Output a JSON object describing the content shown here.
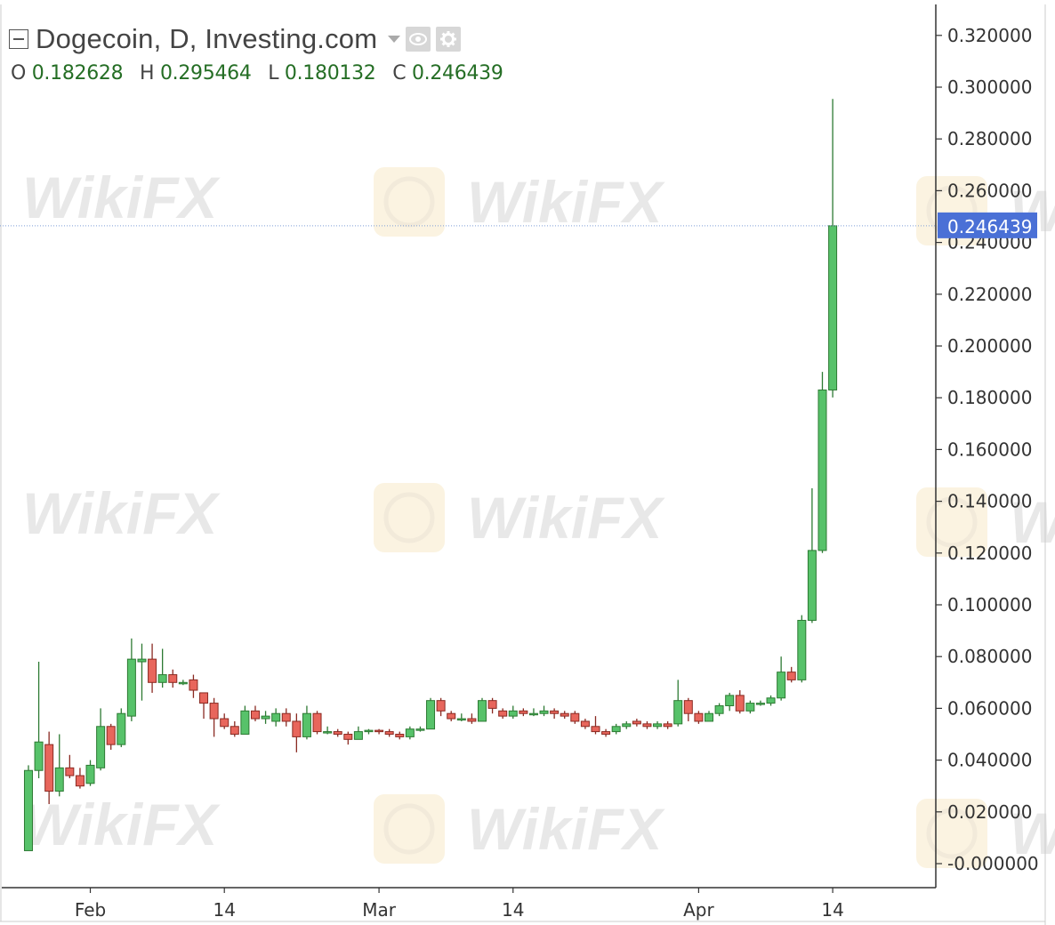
{
  "header": {
    "title": "Dogecoin, D, Investing.com",
    "ohlc": [
      {
        "key": "O",
        "value": "0.182628"
      },
      {
        "key": "H",
        "value": "0.295464"
      },
      {
        "key": "L",
        "value": "0.180132"
      },
      {
        "key": "C",
        "value": "0.246439"
      }
    ],
    "icons": [
      "eye-icon",
      "gear-icon"
    ]
  },
  "watermark": "WikiFX",
  "colors": {
    "up": "#4caf50",
    "up_fill": "#57c26a",
    "down": "#e05a4f",
    "down_fill": "#e8665c",
    "last_price_bg": "#4a70d6",
    "last_price_line": "#7f9fd8"
  },
  "chart_data": {
    "type": "candlestick",
    "title": "Dogecoin, D, Investing.com",
    "y_tick_labels": [
      "-0.000000",
      "0.020000",
      "0.040000",
      "0.060000",
      "0.080000",
      "0.100000",
      "0.120000",
      "0.140000",
      "0.160000",
      "0.180000",
      "0.200000",
      "0.220000",
      "0.240000",
      "0.260000",
      "0.280000",
      "0.300000",
      "0.320000"
    ],
    "y_ticks": [
      0,
      0.02,
      0.04,
      0.06,
      0.08,
      0.1,
      0.12,
      0.14,
      0.16,
      0.18,
      0.2,
      0.22,
      0.24,
      0.26,
      0.28,
      0.3,
      0.32
    ],
    "ylim": [
      -0.004,
      0.333
    ],
    "x_tick_labels": [
      {
        "label": "Feb",
        "day": 6
      },
      {
        "label": "14",
        "day": 19
      },
      {
        "label": "Mar",
        "day": 34
      },
      {
        "label": "14",
        "day": 47
      },
      {
        "label": "Apr",
        "day": 65
      },
      {
        "label": "14",
        "day": 78
      }
    ],
    "xlim": [
      -2.5,
      88
    ],
    "last_price_label": "0.246439",
    "last_price": 0.246439,
    "grid": false,
    "candles": [
      {
        "o": 0.005,
        "h": 0.038,
        "l": 0.005,
        "c": 0.036
      },
      {
        "o": 0.036,
        "h": 0.078,
        "l": 0.033,
        "c": 0.047
      },
      {
        "o": 0.046,
        "h": 0.051,
        "l": 0.023,
        "c": 0.028
      },
      {
        "o": 0.028,
        "h": 0.05,
        "l": 0.026,
        "c": 0.037
      },
      {
        "o": 0.037,
        "h": 0.042,
        "l": 0.033,
        "c": 0.034
      },
      {
        "o": 0.034,
        "h": 0.037,
        "l": 0.029,
        "c": 0.03
      },
      {
        "o": 0.031,
        "h": 0.04,
        "l": 0.03,
        "c": 0.038
      },
      {
        "o": 0.037,
        "h": 0.06,
        "l": 0.036,
        "c": 0.053
      },
      {
        "o": 0.053,
        "h": 0.054,
        "l": 0.044,
        "c": 0.046
      },
      {
        "o": 0.046,
        "h": 0.06,
        "l": 0.045,
        "c": 0.058
      },
      {
        "o": 0.057,
        "h": 0.087,
        "l": 0.055,
        "c": 0.079
      },
      {
        "o": 0.078,
        "h": 0.085,
        "l": 0.063,
        "c": 0.079
      },
      {
        "o": 0.079,
        "h": 0.085,
        "l": 0.066,
        "c": 0.07
      },
      {
        "o": 0.07,
        "h": 0.083,
        "l": 0.068,
        "c": 0.073
      },
      {
        "o": 0.073,
        "h": 0.075,
        "l": 0.068,
        "c": 0.07
      },
      {
        "o": 0.07,
        "h": 0.071,
        "l": 0.069,
        "c": 0.07
      },
      {
        "o": 0.071,
        "h": 0.073,
        "l": 0.064,
        "c": 0.067
      },
      {
        "o": 0.066,
        "h": 0.066,
        "l": 0.056,
        "c": 0.062
      },
      {
        "o": 0.062,
        "h": 0.064,
        "l": 0.049,
        "c": 0.056
      },
      {
        "o": 0.056,
        "h": 0.058,
        "l": 0.052,
        "c": 0.053
      },
      {
        "o": 0.053,
        "h": 0.055,
        "l": 0.049,
        "c": 0.05
      },
      {
        "o": 0.05,
        "h": 0.061,
        "l": 0.05,
        "c": 0.059
      },
      {
        "o": 0.059,
        "h": 0.061,
        "l": 0.055,
        "c": 0.056
      },
      {
        "o": 0.056,
        "h": 0.059,
        "l": 0.054,
        "c": 0.057
      },
      {
        "o": 0.055,
        "h": 0.06,
        "l": 0.053,
        "c": 0.058
      },
      {
        "o": 0.058,
        "h": 0.06,
        "l": 0.053,
        "c": 0.055
      },
      {
        "o": 0.055,
        "h": 0.058,
        "l": 0.043,
        "c": 0.049
      },
      {
        "o": 0.049,
        "h": 0.061,
        "l": 0.048,
        "c": 0.058
      },
      {
        "o": 0.058,
        "h": 0.059,
        "l": 0.05,
        "c": 0.051
      },
      {
        "o": 0.051,
        "h": 0.053,
        "l": 0.05,
        "c": 0.051
      },
      {
        "o": 0.051,
        "h": 0.052,
        "l": 0.049,
        "c": 0.05
      },
      {
        "o": 0.05,
        "h": 0.051,
        "l": 0.046,
        "c": 0.048
      },
      {
        "o": 0.048,
        "h": 0.053,
        "l": 0.048,
        "c": 0.051
      },
      {
        "o": 0.051,
        "h": 0.052,
        "l": 0.05,
        "c": 0.0515
      },
      {
        "o": 0.0515,
        "h": 0.052,
        "l": 0.05,
        "c": 0.051
      },
      {
        "o": 0.051,
        "h": 0.052,
        "l": 0.049,
        "c": 0.05
      },
      {
        "o": 0.05,
        "h": 0.051,
        "l": 0.048,
        "c": 0.049
      },
      {
        "o": 0.049,
        "h": 0.053,
        "l": 0.048,
        "c": 0.052
      },
      {
        "o": 0.052,
        "h": 0.053,
        "l": 0.051,
        "c": 0.052
      },
      {
        "o": 0.052,
        "h": 0.064,
        "l": 0.052,
        "c": 0.063
      },
      {
        "o": 0.063,
        "h": 0.064,
        "l": 0.057,
        "c": 0.059
      },
      {
        "o": 0.058,
        "h": 0.059,
        "l": 0.055,
        "c": 0.056
      },
      {
        "o": 0.056,
        "h": 0.058,
        "l": 0.055,
        "c": 0.056
      },
      {
        "o": 0.056,
        "h": 0.058,
        "l": 0.054,
        "c": 0.055
      },
      {
        "o": 0.055,
        "h": 0.064,
        "l": 0.055,
        "c": 0.063
      },
      {
        "o": 0.063,
        "h": 0.064,
        "l": 0.058,
        "c": 0.06
      },
      {
        "o": 0.059,
        "h": 0.06,
        "l": 0.056,
        "c": 0.057
      },
      {
        "o": 0.057,
        "h": 0.061,
        "l": 0.056,
        "c": 0.059
      },
      {
        "o": 0.059,
        "h": 0.06,
        "l": 0.057,
        "c": 0.058
      },
      {
        "o": 0.058,
        "h": 0.06,
        "l": 0.057,
        "c": 0.058
      },
      {
        "o": 0.058,
        "h": 0.061,
        "l": 0.057,
        "c": 0.059
      },
      {
        "o": 0.059,
        "h": 0.06,
        "l": 0.056,
        "c": 0.058
      },
      {
        "o": 0.058,
        "h": 0.059,
        "l": 0.056,
        "c": 0.057
      },
      {
        "o": 0.058,
        "h": 0.059,
        "l": 0.054,
        "c": 0.055
      },
      {
        "o": 0.055,
        "h": 0.056,
        "l": 0.052,
        "c": 0.053
      },
      {
        "o": 0.053,
        "h": 0.057,
        "l": 0.05,
        "c": 0.051
      },
      {
        "o": 0.051,
        "h": 0.052,
        "l": 0.049,
        "c": 0.05
      },
      {
        "o": 0.051,
        "h": 0.054,
        "l": 0.05,
        "c": 0.053
      },
      {
        "o": 0.053,
        "h": 0.055,
        "l": 0.052,
        "c": 0.054
      },
      {
        "o": 0.055,
        "h": 0.056,
        "l": 0.053,
        "c": 0.054
      },
      {
        "o": 0.054,
        "h": 0.055,
        "l": 0.052,
        "c": 0.053
      },
      {
        "o": 0.053,
        "h": 0.055,
        "l": 0.052,
        "c": 0.054
      },
      {
        "o": 0.054,
        "h": 0.055,
        "l": 0.052,
        "c": 0.053
      },
      {
        "o": 0.054,
        "h": 0.071,
        "l": 0.053,
        "c": 0.063
      },
      {
        "o": 0.063,
        "h": 0.064,
        "l": 0.055,
        "c": 0.058
      },
      {
        "o": 0.058,
        "h": 0.059,
        "l": 0.054,
        "c": 0.055
      },
      {
        "o": 0.055,
        "h": 0.059,
        "l": 0.055,
        "c": 0.058
      },
      {
        "o": 0.058,
        "h": 0.062,
        "l": 0.057,
        "c": 0.061
      },
      {
        "o": 0.061,
        "h": 0.066,
        "l": 0.059,
        "c": 0.065
      },
      {
        "o": 0.065,
        "h": 0.067,
        "l": 0.058,
        "c": 0.059
      },
      {
        "o": 0.059,
        "h": 0.063,
        "l": 0.058,
        "c": 0.062
      },
      {
        "o": 0.062,
        "h": 0.063,
        "l": 0.061,
        "c": 0.062
      },
      {
        "o": 0.062,
        "h": 0.065,
        "l": 0.061,
        "c": 0.064
      },
      {
        "o": 0.064,
        "h": 0.08,
        "l": 0.063,
        "c": 0.074
      },
      {
        "o": 0.074,
        "h": 0.076,
        "l": 0.07,
        "c": 0.071
      },
      {
        "o": 0.071,
        "h": 0.096,
        "l": 0.07,
        "c": 0.094
      },
      {
        "o": 0.094,
        "h": 0.145,
        "l": 0.093,
        "c": 0.121
      },
      {
        "o": 0.121,
        "h": 0.19,
        "l": 0.12,
        "c": 0.183
      },
      {
        "o": 0.183,
        "h": 0.295464,
        "l": 0.180132,
        "c": 0.246439
      }
    ]
  }
}
